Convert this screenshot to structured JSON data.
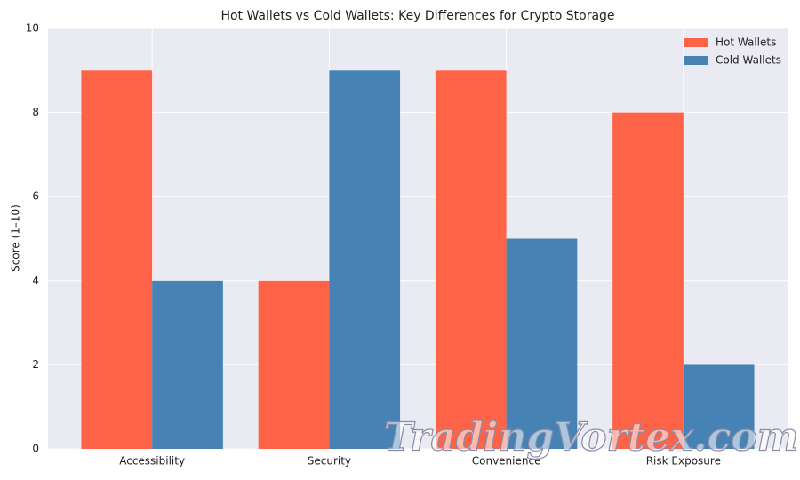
{
  "chart_data": {
    "type": "bar",
    "title": "Hot Wallets vs Cold Wallets: Key Differences for Crypto Storage",
    "y_label": "Score (1–10)",
    "categories": [
      "Accessibility",
      "Security",
      "Convenience",
      "Risk Exposure"
    ],
    "series": [
      {
        "name": "Hot Wallets",
        "color": "#ff6347",
        "values": [
          9,
          4,
          9,
          8
        ]
      },
      {
        "name": "Cold Wallets",
        "color": "#4682b4",
        "values": [
          4,
          9,
          5,
          2
        ]
      }
    ],
    "ylim": [
      0,
      10
    ],
    "yticks": [
      0,
      2,
      4,
      6,
      8,
      10
    ],
    "grid": true,
    "legend": "upper right",
    "watermark": "TradingVortex.com"
  }
}
